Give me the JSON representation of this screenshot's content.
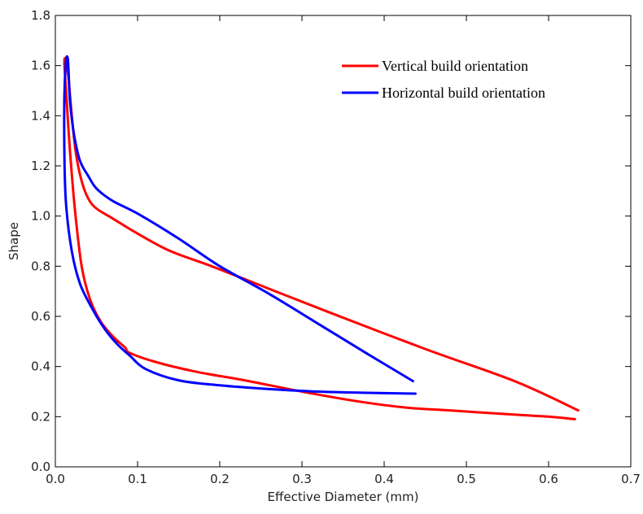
{
  "chart_data": {
    "type": "line",
    "title": "",
    "xlabel": "Effective Diameter (mm)",
    "ylabel": "Shape",
    "xlim": [
      0.0,
      0.7
    ],
    "ylim": [
      0.0,
      1.8
    ],
    "xticks": [
      0.0,
      0.1,
      0.2,
      0.3,
      0.4,
      0.5,
      0.6,
      0.7
    ],
    "yticks": [
      0.0,
      0.2,
      0.4,
      0.6,
      0.8,
      1.0,
      1.2,
      1.4,
      1.6,
      1.8
    ],
    "xtick_labels": [
      "0.0",
      "0.1",
      "0.2",
      "0.3",
      "0.4",
      "0.5",
      "0.6",
      "0.7"
    ],
    "ytick_labels": [
      "0.0",
      "0.2",
      "0.4",
      "0.6",
      "0.8",
      "1.0",
      "1.2",
      "1.4",
      "1.6",
      "1.8"
    ],
    "grid": false,
    "legend_position": "top-right",
    "series": [
      {
        "name": "Vertical build orientation",
        "color": "#ff0000",
        "points": [
          [
            0.636,
            0.225
          ],
          [
            0.56,
            0.34
          ],
          [
            0.45,
            0.47
          ],
          [
            0.33,
            0.62
          ],
          [
            0.26,
            0.71
          ],
          [
            0.19,
            0.8
          ],
          [
            0.14,
            0.86
          ],
          [
            0.1,
            0.93
          ],
          [
            0.07,
            0.99
          ],
          [
            0.05,
            1.03
          ],
          [
            0.04,
            1.07
          ],
          [
            0.032,
            1.14
          ],
          [
            0.025,
            1.25
          ],
          [
            0.02,
            1.4
          ],
          [
            0.016,
            1.55
          ],
          [
            0.013,
            1.62
          ],
          [
            0.011,
            1.61
          ],
          [
            0.014,
            1.45
          ],
          [
            0.018,
            1.25
          ],
          [
            0.024,
            1.02
          ],
          [
            0.032,
            0.8
          ],
          [
            0.042,
            0.67
          ],
          [
            0.055,
            0.58
          ],
          [
            0.07,
            0.52
          ],
          [
            0.085,
            0.475
          ],
          [
            0.09,
            0.455
          ],
          [
            0.12,
            0.42
          ],
          [
            0.17,
            0.38
          ],
          [
            0.23,
            0.345
          ],
          [
            0.3,
            0.3
          ],
          [
            0.37,
            0.26
          ],
          [
            0.43,
            0.235
          ],
          [
            0.48,
            0.225
          ],
          [
            0.55,
            0.21
          ],
          [
            0.6,
            0.2
          ],
          [
            0.632,
            0.19
          ]
        ]
      },
      {
        "name": "Horizontal build orientation",
        "color": "#0000ff",
        "points": [
          [
            0.435,
            0.342
          ],
          [
            0.38,
            0.45
          ],
          [
            0.32,
            0.57
          ],
          [
            0.26,
            0.69
          ],
          [
            0.2,
            0.8
          ],
          [
            0.15,
            0.91
          ],
          [
            0.1,
            1.01
          ],
          [
            0.07,
            1.06
          ],
          [
            0.05,
            1.11
          ],
          [
            0.04,
            1.16
          ],
          [
            0.03,
            1.22
          ],
          [
            0.023,
            1.32
          ],
          [
            0.018,
            1.45
          ],
          [
            0.016,
            1.58
          ],
          [
            0.015,
            1.63
          ],
          [
            0.013,
            1.62
          ],
          [
            0.011,
            1.48
          ],
          [
            0.011,
            1.25
          ],
          [
            0.013,
            1.05
          ],
          [
            0.02,
            0.86
          ],
          [
            0.03,
            0.73
          ],
          [
            0.045,
            0.63
          ],
          [
            0.06,
            0.55
          ],
          [
            0.075,
            0.49
          ],
          [
            0.09,
            0.445
          ],
          [
            0.11,
            0.39
          ],
          [
            0.15,
            0.345
          ],
          [
            0.2,
            0.325
          ],
          [
            0.26,
            0.31
          ],
          [
            0.32,
            0.3
          ],
          [
            0.38,
            0.295
          ],
          [
            0.438,
            0.292
          ]
        ]
      }
    ]
  }
}
